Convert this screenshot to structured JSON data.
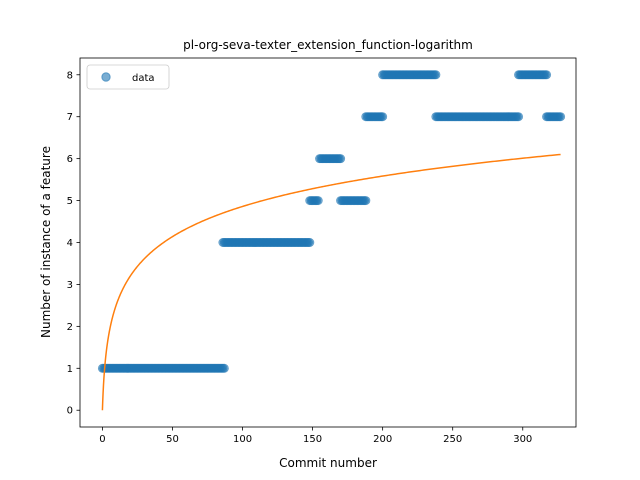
{
  "chart_data": {
    "type": "scatter",
    "title": "pl-org-seva-texter_extension_function-logarithm",
    "xlabel": "Commit number",
    "ylabel": "Number of instance of a feature",
    "xlim": [
      -16,
      338
    ],
    "ylim": [
      -0.4,
      8.4
    ],
    "xticks": [
      0,
      50,
      100,
      150,
      200,
      250,
      300
    ],
    "yticks": [
      0,
      1,
      2,
      3,
      4,
      5,
      6,
      7,
      8
    ],
    "legend": {
      "position": "top-left",
      "entries": [
        "data"
      ]
    },
    "colors": {
      "data": "#1f77b4",
      "fit": "#ff7f0e"
    },
    "series": [
      {
        "name": "data",
        "kind": "scatter",
        "segments": [
          {
            "x_start": 0,
            "x_end": 87,
            "y": 1
          },
          {
            "x_start": 86,
            "x_end": 148,
            "y": 4
          },
          {
            "x_start": 148,
            "x_end": 154,
            "y": 5
          },
          {
            "x_start": 155,
            "x_end": 170,
            "y": 6
          },
          {
            "x_start": 170,
            "x_end": 188,
            "y": 5
          },
          {
            "x_start": 188,
            "x_end": 200,
            "y": 7
          },
          {
            "x_start": 200,
            "x_end": 238,
            "y": 8
          },
          {
            "x_start": 238,
            "x_end": 297,
            "y": 7
          },
          {
            "x_start": 297,
            "x_end": 317,
            "y": 8
          },
          {
            "x_start": 317,
            "x_end": 327,
            "y": 7
          }
        ]
      },
      {
        "kind": "line",
        "x": [
          0,
          1,
          2,
          3,
          5,
          7,
          10,
          15,
          20,
          30,
          40,
          50,
          60,
          80,
          100,
          120,
          150,
          180,
          200,
          230,
          260,
          290,
          310,
          327
        ],
        "y": [
          0,
          1.05,
          1.66,
          2.1,
          2.71,
          3.15,
          3.63,
          4.24,
          4.66,
          5.27,
          5.7,
          6.03,
          6.31,
          6.74,
          7.07,
          7.35,
          7.69,
          7.97,
          8.12,
          8.33,
          8.5,
          8.65,
          8.74,
          8.82
        ],
        "y_scale_factor": 0.6916
      }
    ]
  }
}
